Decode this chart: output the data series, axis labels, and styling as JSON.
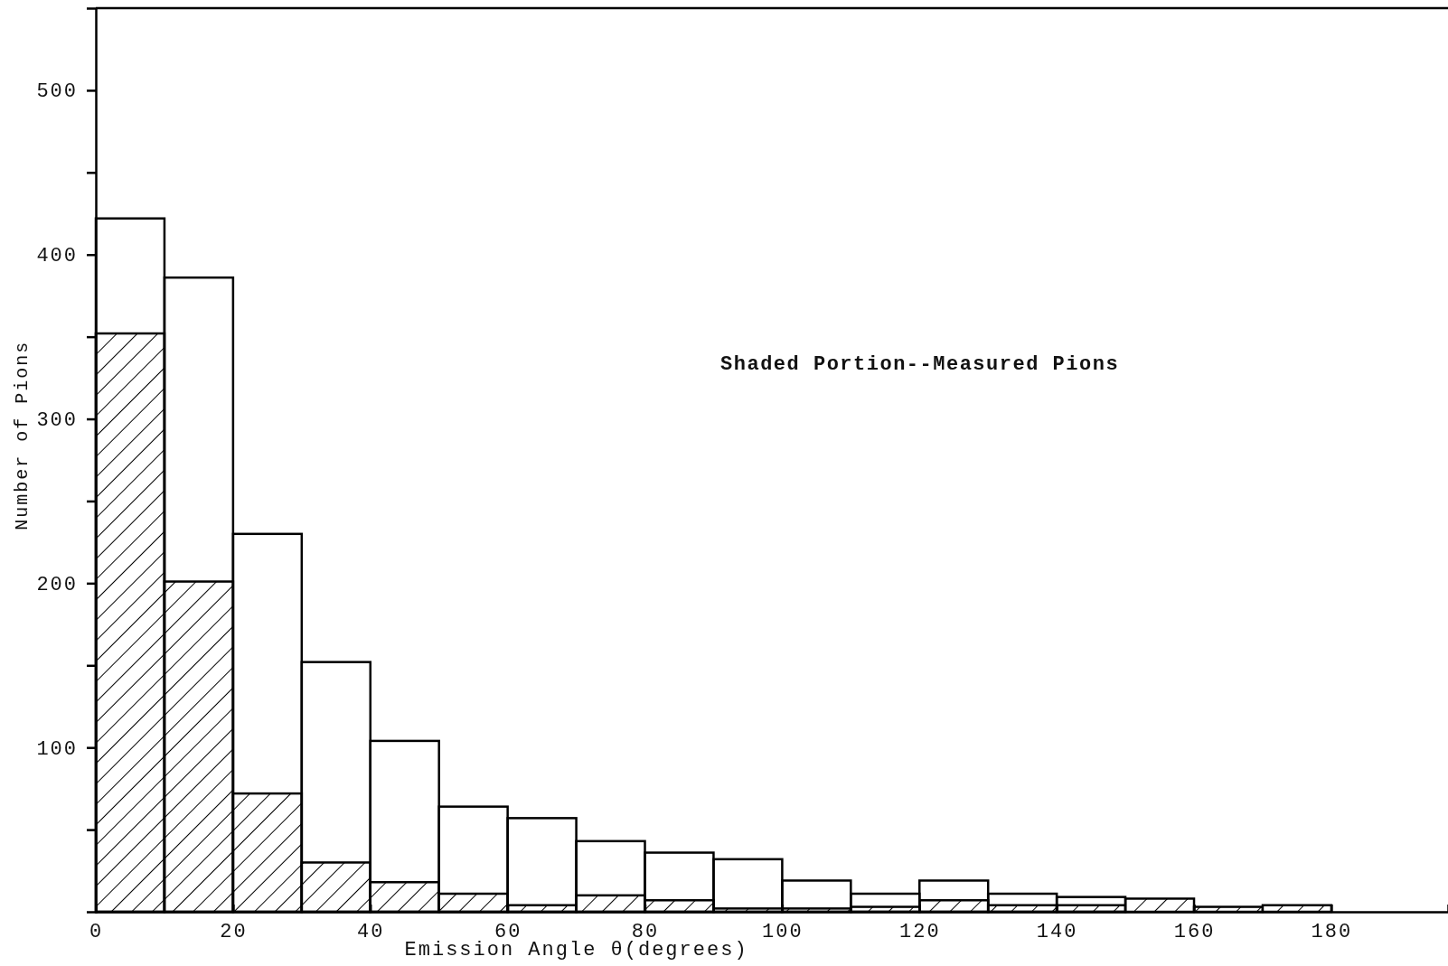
{
  "chart_data": {
    "type": "histogram",
    "xlabel": "Emission Angle θ(degrees)",
    "ylabel": "Number of Pions",
    "bins": [
      0,
      10,
      20,
      30,
      40,
      50,
      60,
      70,
      80,
      90,
      100,
      110,
      120,
      130,
      140,
      150,
      160,
      170,
      180
    ],
    "series": [
      {
        "color": "#000000",
        "values": [
          422,
          386,
          230,
          152,
          104,
          64,
          57,
          43,
          36,
          32,
          19,
          11,
          19,
          11,
          9,
          null,
          null,
          null
        ]
      },
      {
        "color": "#000000",
        "values": [
          352,
          201,
          72,
          30,
          18,
          11,
          4,
          10,
          7,
          2,
          2,
          3,
          7,
          4,
          4,
          8,
          3,
          4
        ]
      }
    ],
    "xlim": [
      0,
      197
    ],
    "xticks": [
      0,
      20,
      40,
      60,
      80,
      100,
      120,
      140,
      160,
      180
    ],
    "ylim": [
      0,
      550
    ],
    "yticks": [
      {
        "value": 50,
        "label": null
      },
      100,
      {
        "value": 150,
        "label": null
      },
      200,
      {
        "value": 250,
        "label": null
      },
      300,
      {
        "value": 350,
        "label": null
      },
      400,
      {
        "value": 450,
        "label": null
      },
      500
    ],
    "annotations": [
      "Shaded Portion--Measured Pions"
    ]
  }
}
